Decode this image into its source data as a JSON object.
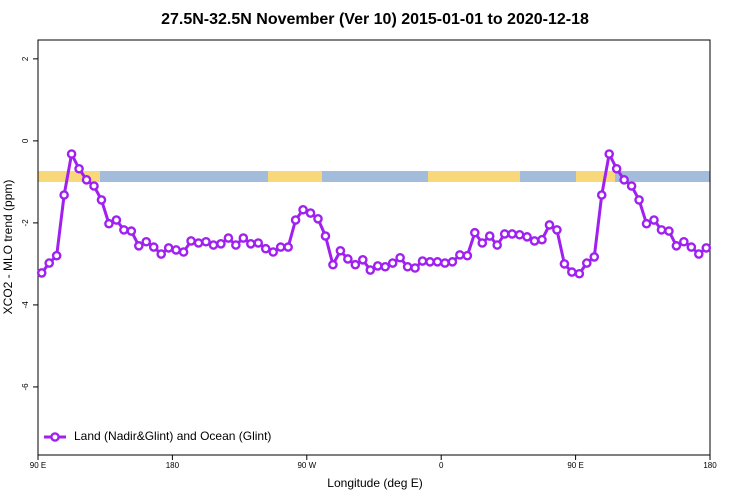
{
  "chart_data": {
    "type": "line",
    "title": "27.5N-32.5N November (Ver 10)   2015-01-01 to 2020-12-18",
    "xlabel": "Longitude (deg E)",
    "ylabel": "XCO2 - MLO trend (ppm)",
    "x": [
      92.5,
      97.5,
      102.5,
      107.5,
      112.5,
      117.5,
      122.5,
      127.5,
      132.5,
      137.5,
      142.5,
      147.5,
      152.5,
      157.5,
      162.5,
      167.5,
      172.5,
      177.5,
      182.5,
      187.5,
      192.5,
      197.5,
      202.5,
      207.5,
      212.5,
      217.5,
      222.5,
      227.5,
      232.5,
      237.5,
      242.5,
      247.5,
      252.5,
      257.5,
      262.5,
      267.5,
      272.5,
      277.5,
      282.5,
      287.5,
      292.5,
      297.5,
      302.5,
      307.5,
      312.5,
      317.5,
      322.5,
      327.5,
      332.5,
      337.5,
      342.5,
      347.5,
      352.5,
      357.5,
      362.5,
      367.5,
      372.5,
      377.5,
      382.5,
      387.5,
      392.5,
      397.5,
      402.5,
      407.5,
      412.5,
      417.5,
      422.5,
      427.5,
      432.5,
      437.5,
      442.5,
      447.5,
      452.5,
      457.5,
      462.5,
      467.5,
      472.5,
      477.5,
      482.5,
      487.5,
      492.5,
      497.5,
      502.5,
      507.5,
      512.5,
      517.5,
      522.5,
      527.5,
      532.5,
      537.5
    ],
    "series": [
      {
        "name": "Land (Nadir&Glint) and Ocean (Glint)",
        "color": "#a020f0",
        "values": [
          -3.22,
          -2.98,
          -2.8,
          -1.32,
          -0.32,
          -0.68,
          -0.95,
          -1.1,
          -1.44,
          -2.02,
          -1.93,
          -2.17,
          -2.2,
          -2.56,
          -2.46,
          -2.59,
          -2.76,
          -2.61,
          -2.66,
          -2.71,
          -2.44,
          -2.49,
          -2.46,
          -2.54,
          -2.51,
          -2.37,
          -2.54,
          -2.37,
          -2.51,
          -2.49,
          -2.63,
          -2.71,
          -2.59,
          -2.59,
          -1.93,
          -1.68,
          -1.76,
          -1.9,
          -2.32,
          -3.02,
          -2.68,
          -2.88,
          -3.02,
          -2.9,
          -3.15,
          -3.05,
          -3.07,
          -2.98,
          -2.85,
          -3.07,
          -3.1,
          -2.93,
          -2.95,
          -2.95,
          -2.98,
          -2.95,
          -2.78,
          -2.8,
          -2.24,
          -2.49,
          -2.32,
          -2.54,
          -2.27,
          -2.27,
          -2.29,
          -2.34,
          -2.44,
          -2.41,
          -2.05,
          -2.17,
          -3.0,
          -3.2,
          -3.24,
          -2.98,
          -2.83,
          -1.32,
          -0.32,
          -0.68,
          -0.95,
          -1.1,
          -1.44,
          -2.02,
          -1.93,
          -2.17,
          -2.2,
          -2.56,
          -2.46,
          -2.59,
          -2.76,
          -2.61
        ]
      }
    ],
    "xlim": [
      90,
      540
    ],
    "xticks": [
      {
        "value": 90,
        "label": "90 E"
      },
      {
        "value": 180,
        "label": "180"
      },
      {
        "value": 270,
        "label": "90 W"
      },
      {
        "value": 360,
        "label": "0"
      },
      {
        "value": 450,
        "label": "90 E"
      },
      {
        "value": 540,
        "label": "180"
      }
    ],
    "ylim": [
      -7.66,
      2.46
    ],
    "yticks": [
      -6,
      -4,
      -2,
      0,
      2
    ],
    "legend": "bottom-left"
  }
}
